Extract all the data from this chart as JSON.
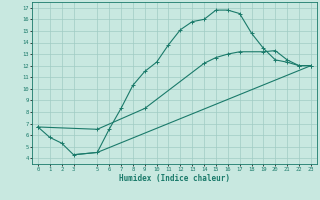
{
  "xlabel": "Humidex (Indice chaleur)",
  "bg_color": "#c8e8e0",
  "grid_color_minor": "#b8ddd6",
  "grid_color_major": "#a0ccc4",
  "line_color": "#1a7a6a",
  "xlim": [
    -0.5,
    23.5
  ],
  "ylim": [
    3.5,
    17.5
  ],
  "xticks": [
    0,
    1,
    2,
    3,
    5,
    6,
    7,
    8,
    9,
    10,
    11,
    12,
    13,
    14,
    15,
    16,
    17,
    18,
    19,
    20,
    21,
    22,
    23
  ],
  "yticks": [
    4,
    5,
    6,
    7,
    8,
    9,
    10,
    11,
    12,
    13,
    14,
    15,
    16,
    17
  ],
  "line1_x": [
    0,
    1,
    2,
    3,
    5,
    6,
    7,
    8,
    9,
    10,
    11,
    12,
    13,
    14,
    15,
    16,
    17,
    18,
    19,
    20,
    21,
    22,
    23
  ],
  "line1_y": [
    6.7,
    5.8,
    5.3,
    4.3,
    4.5,
    6.5,
    8.3,
    10.3,
    11.5,
    12.3,
    13.8,
    15.1,
    15.8,
    16.0,
    16.8,
    16.8,
    16.5,
    14.8,
    13.5,
    12.5,
    12.3,
    12.0,
    12.0
  ],
  "line2_x": [
    0,
    5,
    9,
    14,
    15,
    16,
    17,
    19,
    20,
    21,
    22,
    23
  ],
  "line2_y": [
    6.7,
    6.5,
    8.3,
    12.2,
    12.7,
    13.0,
    13.2,
    13.2,
    13.3,
    12.5,
    12.0,
    12.0
  ],
  "line3_x": [
    3,
    5,
    23
  ],
  "line3_y": [
    4.3,
    4.5,
    12.0
  ]
}
